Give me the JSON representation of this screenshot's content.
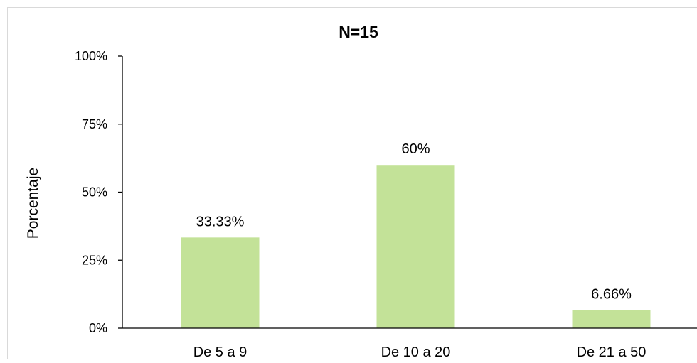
{
  "chart_data": {
    "type": "bar",
    "title": "N=15",
    "xlabel": "",
    "ylabel": "Porcentaje",
    "categories": [
      "De 5 a 9",
      "De 10 a 20",
      "De 21 a 50"
    ],
    "values": [
      33.33,
      60,
      6.66
    ],
    "value_labels": [
      "33.33%",
      "60%",
      "6.66%"
    ],
    "ylim": [
      0,
      100
    ],
    "yticks": [
      0,
      25,
      50,
      75,
      100
    ],
    "ytick_labels": [
      "0%",
      "25%",
      "50%",
      "75%",
      "100%"
    ],
    "bar_color": "#c3e298",
    "grid": false,
    "legend": "none"
  }
}
